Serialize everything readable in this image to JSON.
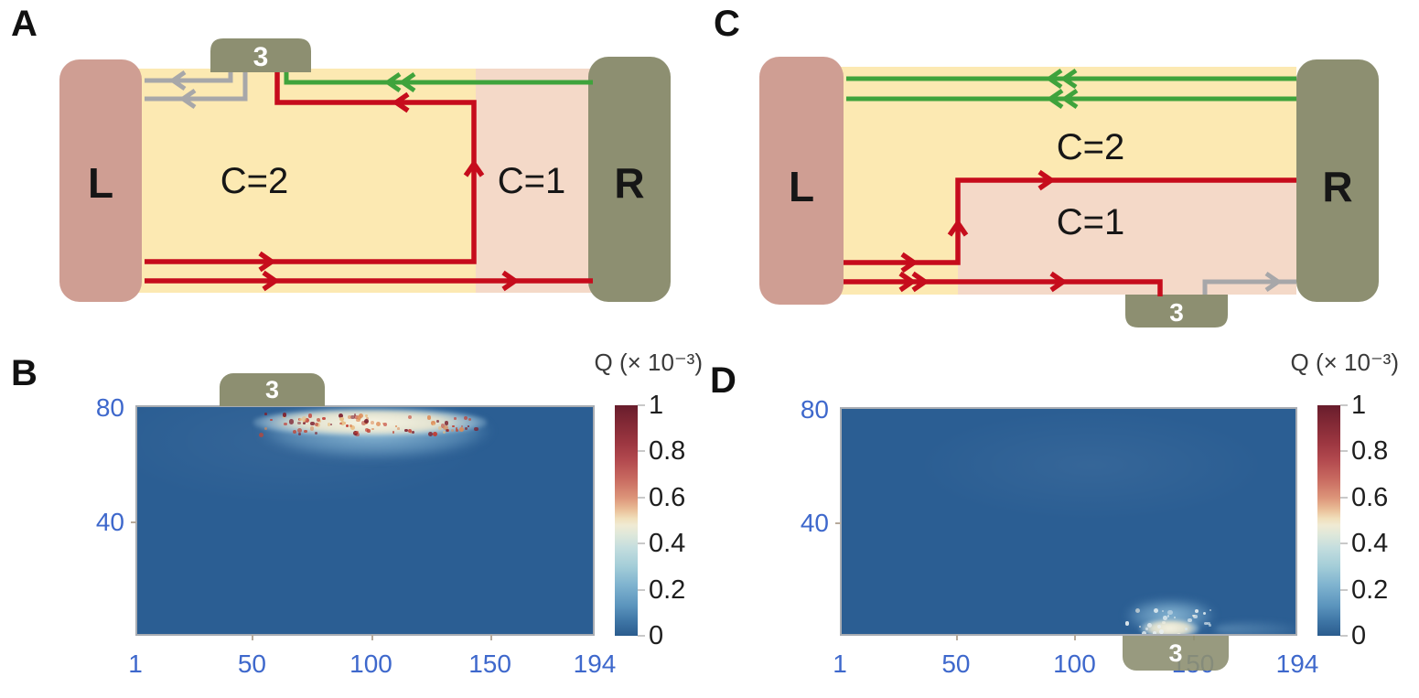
{
  "colors": {
    "edge_red": "#c60c1c",
    "edge_green": "#3fa33c",
    "edge_gray": "#a7a7a9",
    "region_c2_yellow": "#fce9b2",
    "region_c1_pink": "#f4d9c8",
    "contact_left_pink": "#cf9e93",
    "contact_olive": "#8d8f71",
    "heatmap_blue": "#2b5e93",
    "axis_label_blue": "#3e68cc"
  },
  "schematics": {
    "A": {
      "panel_label": "A",
      "left_contact": "L",
      "right_contact": "R",
      "probe_label": "3",
      "probe_position": "top",
      "region_left": "C=2",
      "region_right": "C=1"
    },
    "C": {
      "panel_label": "C",
      "left_contact": "L",
      "right_contact": "R",
      "probe_label": "3",
      "probe_position": "bottom-right",
      "region_top": "C=2",
      "region_bottom": "C=1"
    }
  },
  "chart_data": [
    {
      "panel": "B",
      "panel_label": "B",
      "type": "heatmap",
      "colorbar_title": "Q (× 10⁻³)",
      "x_ticks": [
        1,
        50,
        100,
        150,
        194
      ],
      "y_ticks": [
        40,
        80
      ],
      "x_range": [
        1,
        194
      ],
      "y_range": [
        0,
        81
      ],
      "colorbar_ticks": [
        1,
        0.8,
        0.6,
        0.4,
        0.2,
        0
      ],
      "colorbar_range": [
        0,
        1
      ],
      "background_value": 0.02,
      "probe": {
        "label": "3",
        "x_center": 58,
        "side": "top"
      },
      "hotspot": {
        "note": "bright streak of heat Q along the top edge below probe 3",
        "x_range": [
          40,
          162
        ],
        "y_range": [
          60,
          81
        ],
        "core_x_range": [
          50,
          148
        ],
        "core_y_range": [
          71,
          80
        ],
        "peak_value": 1.0,
        "speckles": {
          "count": 95,
          "x_range": [
            52,
            145
          ],
          "y_range": [
            72,
            79
          ],
          "colors": [
            "#7e2230",
            "#bf4636",
            "#dd8a55",
            "#e8bd82",
            "#c23b31"
          ]
        }
      }
    },
    {
      "panel": "D",
      "panel_label": "D",
      "type": "heatmap",
      "colorbar_title": "Q (× 10⁻³)",
      "x_ticks": [
        1,
        50,
        100,
        150,
        194
      ],
      "y_ticks": [
        40,
        80
      ],
      "x_range": [
        1,
        194
      ],
      "y_range": [
        0,
        81
      ],
      "colorbar_ticks": [
        1,
        0.8,
        0.6,
        0.4,
        0.2,
        0
      ],
      "colorbar_range": [
        0,
        1
      ],
      "background_value": 0.02,
      "probe": {
        "label": "3",
        "x_center": 142,
        "side": "bottom"
      },
      "hotspot": {
        "note": "bright spot of heat Q at the bottom edge above probe 3",
        "x_range": [
          116,
          163
        ],
        "y_range": [
          0,
          13
        ],
        "core_x_range": [
          127,
          152
        ],
        "core_y_range": [
          0,
          6
        ],
        "tail_x_range": [
          158,
          193
        ],
        "peak_value": 0.5,
        "speckles": {
          "count": 30,
          "x_range": [
            120,
            160
          ],
          "y_range": [
            1,
            11
          ],
          "colors": [
            "#e9f0f2",
            "#d8e6ec",
            "#f4f1e4"
          ]
        }
      }
    }
  ]
}
